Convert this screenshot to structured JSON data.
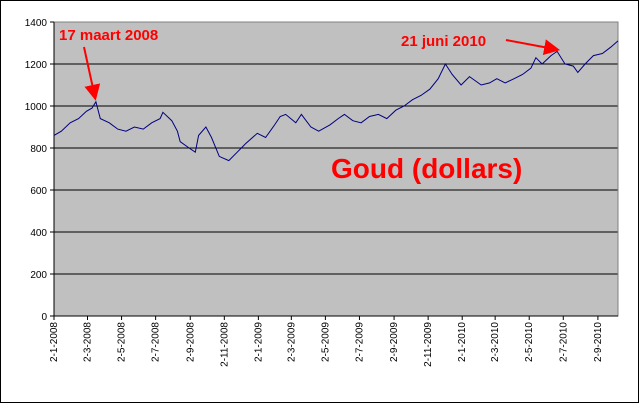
{
  "chart_data": {
    "type": "line",
    "title": "Goud (dollars)",
    "xlabel": "",
    "ylabel": "",
    "ylim": [
      0,
      1400
    ],
    "y_ticks": [
      0,
      200,
      400,
      600,
      800,
      1000,
      1200,
      1400
    ],
    "y_tick_labels": [
      "0",
      "200",
      "400",
      "600",
      "800",
      "1000",
      "1200",
      "1400"
    ],
    "x_range": [
      "2008-01-02",
      "2010-10-08"
    ],
    "x_tick_dates": [
      "2008-01-02",
      "2008-03-02",
      "2008-05-02",
      "2008-07-02",
      "2008-09-02",
      "2008-11-02",
      "2009-01-02",
      "2009-03-02",
      "2009-05-02",
      "2009-07-02",
      "2009-09-02",
      "2009-11-02",
      "2010-01-02",
      "2010-03-02",
      "2010-05-02",
      "2010-07-02",
      "2010-09-02"
    ],
    "x_tick_labels": [
      "2-1-2008",
      "2-3-2008",
      "2-5-2008",
      "2-7-2008",
      "2-9-2008",
      "2-11-2008",
      "2-1-2009",
      "2-3-2009",
      "2-5-2009",
      "2-7-2009",
      "2-9-2009",
      "2-11-2009",
      "2-1-2010",
      "2-3-2010",
      "2-5-2010",
      "2-7-2010",
      "2-9-2010"
    ],
    "grid": true,
    "plot_background": "#c0c0c0",
    "line_color": "#000080",
    "annotation_color": "#ff0000",
    "series": [
      {
        "x": [
          "2008-01-02",
          "2008-01-15",
          "2008-01-31",
          "2008-02-15",
          "2008-02-29",
          "2008-03-10",
          "2008-03-17",
          "2008-03-25",
          "2008-04-10",
          "2008-04-25",
          "2008-05-10",
          "2008-05-25",
          "2008-06-10",
          "2008-06-25",
          "2008-07-10",
          "2008-07-15",
          "2008-07-31",
          "2008-08-10",
          "2008-08-15",
          "2008-08-31",
          "2008-09-11",
          "2008-09-17",
          "2008-09-30",
          "2008-10-10",
          "2008-10-24",
          "2008-11-10",
          "2008-11-25",
          "2008-12-10",
          "2008-12-31",
          "2009-01-15",
          "2009-01-31",
          "2009-02-10",
          "2009-02-20",
          "2009-03-10",
          "2009-03-20",
          "2009-04-06",
          "2009-04-20",
          "2009-05-10",
          "2009-05-25",
          "2009-06-05",
          "2009-06-20",
          "2009-07-05",
          "2009-07-20",
          "2009-08-05",
          "2009-08-20",
          "2009-09-05",
          "2009-09-20",
          "2009-10-05",
          "2009-10-20",
          "2009-11-05",
          "2009-11-20",
          "2009-12-03",
          "2009-12-15",
          "2009-12-31",
          "2010-01-15",
          "2010-02-05",
          "2010-02-20",
          "2010-03-05",
          "2010-03-20",
          "2010-04-05",
          "2010-04-20",
          "2010-05-05",
          "2010-05-14",
          "2010-05-25",
          "2010-06-10",
          "2010-06-21",
          "2010-07-05",
          "2010-07-20",
          "2010-07-28",
          "2010-08-10",
          "2010-08-25",
          "2010-09-10",
          "2010-09-25",
          "2010-10-08"
        ],
        "y": [
          860,
          880,
          920,
          940,
          975,
          990,
          1020,
          940,
          920,
          890,
          880,
          900,
          890,
          920,
          940,
          970,
          930,
          880,
          830,
          800,
          780,
          860,
          900,
          850,
          760,
          740,
          780,
          820,
          870,
          850,
          910,
          950,
          960,
          920,
          960,
          900,
          880,
          910,
          940,
          960,
          930,
          920,
          950,
          960,
          940,
          980,
          1000,
          1030,
          1050,
          1080,
          1130,
          1200,
          1150,
          1100,
          1140,
          1100,
          1110,
          1130,
          1110,
          1130,
          1150,
          1180,
          1230,
          1200,
          1240,
          1260,
          1200,
          1190,
          1160,
          1200,
          1240,
          1250,
          1280,
          1310
        ]
      }
    ],
    "annotations": [
      {
        "text": "17 maart 2008",
        "date": "2008-03-17"
      },
      {
        "text": "21 juni 2010",
        "date": "2010-06-21"
      }
    ]
  }
}
